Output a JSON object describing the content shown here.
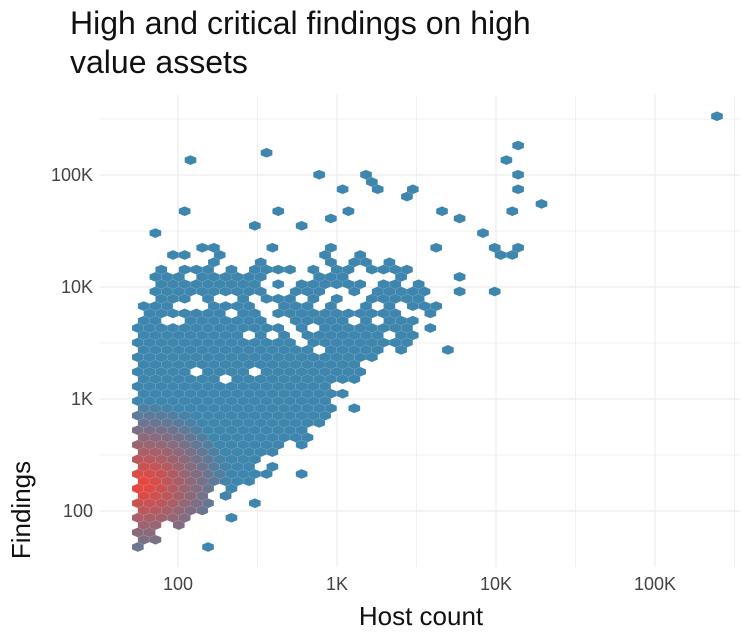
{
  "chart_data": {
    "type": "hexbin",
    "title": "High and critical findings on high value assets",
    "xlabel": "Host count",
    "ylabel": "Findings",
    "xscale": "log",
    "yscale": "log",
    "xlim": [
      35,
      350000
    ],
    "ylim": [
      30,
      500000
    ],
    "x_ticks": [
      {
        "value": 100,
        "label": "100"
      },
      {
        "value": 1000,
        "label": "1K"
      },
      {
        "value": 10000,
        "label": "10K"
      },
      {
        "value": 100000,
        "label": "100K"
      }
    ],
    "y_ticks": [
      {
        "value": 100,
        "label": "100"
      },
      {
        "value": 1000,
        "label": "1K"
      },
      {
        "value": 10000,
        "label": "10K"
      },
      {
        "value": 100000,
        "label": "100K"
      }
    ],
    "grid": true,
    "legend": "none",
    "color_scale": {
      "low": "#3e86ad",
      "high": "#e8473f"
    },
    "density_peak": {
      "host": 60,
      "findings": 170
    },
    "core_envelope": [
      {
        "findings": 48,
        "host_min": 54,
        "host_max": 70,
        "fill": 0.8
      },
      {
        "findings": 60,
        "host_min": 54,
        "host_max": 90,
        "fill": 0.9
      },
      {
        "findings": 80,
        "host_min": 54,
        "host_max": 120,
        "fill": 1
      },
      {
        "findings": 110,
        "host_min": 54,
        "host_max": 160,
        "fill": 1
      },
      {
        "findings": 150,
        "host_min": 54,
        "host_max": 230,
        "fill": 1
      },
      {
        "findings": 200,
        "host_min": 54,
        "host_max": 340,
        "fill": 1
      },
      {
        "findings": 300,
        "host_min": 54,
        "host_max": 500,
        "fill": 1
      },
      {
        "findings": 450,
        "host_min": 54,
        "host_max": 700,
        "fill": 1
      },
      {
        "findings": 700,
        "host_min": 54,
        "host_max": 850,
        "fill": 1
      },
      {
        "findings": 1000,
        "host_min": 54,
        "host_max": 1000,
        "fill": 1
      },
      {
        "findings": 1500,
        "host_min": 54,
        "host_max": 1600,
        "fill": 0.97
      },
      {
        "findings": 2500,
        "host_min": 54,
        "host_max": 2500,
        "fill": 0.95
      },
      {
        "findings": 4000,
        "host_min": 54,
        "host_max": 3800,
        "fill": 0.9
      },
      {
        "findings": 6000,
        "host_min": 58,
        "host_max": 4500,
        "fill": 0.8
      },
      {
        "findings": 9000,
        "host_min": 65,
        "host_max": 4000,
        "fill": 0.7
      },
      {
        "findings": 13000,
        "host_min": 75,
        "host_max": 3500,
        "fill": 0.55
      },
      {
        "findings": 18000,
        "host_min": 90,
        "host_max": 3000,
        "fill": 0.4
      },
      {
        "findings": 24000,
        "host_min": 110,
        "host_max": 2000,
        "fill": 0.25
      }
    ],
    "outliers": [
      [
        228000,
        330000
      ],
      [
        114,
        130000
      ],
      [
        343,
        155000
      ],
      [
        738,
        96000
      ],
      [
        1455,
        96000
      ],
      [
        1560,
        83000
      ],
      [
        1700,
        72000
      ],
      [
        1030,
        72000
      ],
      [
        2830,
        72000
      ],
      [
        2600,
        61000
      ],
      [
        12800,
        180000
      ],
      [
        11000,
        130000
      ],
      [
        12800,
        96000
      ],
      [
        12800,
        72000
      ],
      [
        18000,
        53000
      ],
      [
        12000,
        45000
      ],
      [
        106,
        45000
      ],
      [
        408,
        45000
      ],
      [
        1120,
        45000
      ],
      [
        860,
        39000
      ],
      [
        290,
        33000
      ],
      [
        575,
        33000
      ],
      [
        4400,
        45000
      ],
      [
        5500,
        39000
      ],
      [
        9300,
        8500
      ],
      [
        4700,
        2600
      ],
      [
        1200,
        800
      ],
      [
        620,
        218
      ],
      [
        160,
        47
      ],
      [
        318,
        113
      ],
      [
        228,
        88
      ],
      [
        68,
        28500
      ],
      [
        78,
        28500
      ],
      [
        8600,
        28500
      ],
      [
        9300,
        24000
      ],
      [
        10000,
        18000
      ],
      [
        12800,
        21000
      ],
      [
        11700,
        18000
      ],
      [
        6100,
        13000
      ],
      [
        6100,
        9000
      ],
      [
        4300,
        24000
      ]
    ]
  }
}
